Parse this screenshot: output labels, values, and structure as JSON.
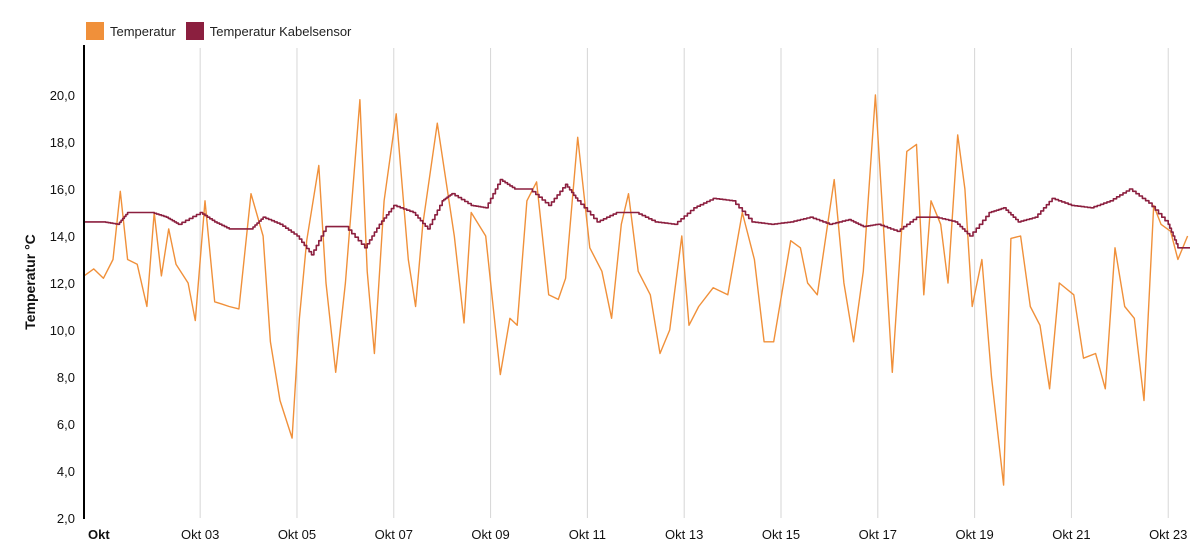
{
  "legend": [
    {
      "label": "Temperatur",
      "color": "#f0903a"
    },
    {
      "label": "Temperatur Kabelsensor",
      "color": "#8b1f3f"
    }
  ],
  "chart_data": {
    "type": "line",
    "ylabel": "Temperatur °C",
    "ylim": [
      2,
      22
    ],
    "yticks": [
      "2,0",
      "4,0",
      "6,0",
      "8,0",
      "10,0",
      "12,0",
      "14,0",
      "16,0",
      "18,0",
      "20,0"
    ],
    "xlim": [
      0.6,
      23.45
    ],
    "xticks": [
      {
        "day": 1,
        "label": "Okt"
      },
      {
        "day": 3,
        "label": "Okt 03"
      },
      {
        "day": 5,
        "label": "Okt 05"
      },
      {
        "day": 7,
        "label": "Okt 07"
      },
      {
        "day": 9,
        "label": "Okt 09"
      },
      {
        "day": 11,
        "label": "Okt 11"
      },
      {
        "day": 13,
        "label": "Okt 13"
      },
      {
        "day": 15,
        "label": "Okt 15"
      },
      {
        "day": 17,
        "label": "Okt 17"
      },
      {
        "day": 19,
        "label": "Okt 19"
      },
      {
        "day": 21,
        "label": "Okt 21"
      },
      {
        "day": 23,
        "label": "Okt 23"
      }
    ],
    "grid": "vertical",
    "legend_position": "top-left",
    "series": [
      {
        "name": "Temperatur",
        "color": "#f0903a",
        "x": [
          0.6,
          0.8,
          1.0,
          1.2,
          1.35,
          1.5,
          1.7,
          1.9,
          2.05,
          2.2,
          2.35,
          2.5,
          2.75,
          2.9,
          3.1,
          3.3,
          3.45,
          3.6,
          3.8,
          4.05,
          4.3,
          4.45,
          4.65,
          4.9,
          5.05,
          5.2,
          5.45,
          5.6,
          5.8,
          6.0,
          6.3,
          6.45,
          6.6,
          6.8,
          7.05,
          7.3,
          7.45,
          7.6,
          7.9,
          8.25,
          8.45,
          8.6,
          8.9,
          9.2,
          9.4,
          9.55,
          9.75,
          9.95,
          10.2,
          10.4,
          10.55,
          10.8,
          11.05,
          11.3,
          11.5,
          11.7,
          11.85,
          12.05,
          12.3,
          12.5,
          12.7,
          12.95,
          13.1,
          13.3,
          13.6,
          13.9,
          14.2,
          14.45,
          14.65,
          14.85,
          15.2,
          15.4,
          15.55,
          15.75,
          16.1,
          16.3,
          16.5,
          16.7,
          16.95,
          17.1,
          17.3,
          17.6,
          17.8,
          17.95,
          18.1,
          18.3,
          18.45,
          18.65,
          18.8,
          18.95,
          19.15,
          19.35,
          19.6,
          19.75,
          19.95,
          20.15,
          20.35,
          20.55,
          20.75,
          21.05,
          21.25,
          21.5,
          21.7,
          21.9,
          22.1,
          22.3,
          22.5,
          22.7,
          22.85,
          23.05,
          23.2,
          23.4
        ],
        "y": [
          12.3,
          12.6,
          12.2,
          13.0,
          15.9,
          13.0,
          12.8,
          11.0,
          15.0,
          12.3,
          14.3,
          12.8,
          12.0,
          10.4,
          15.5,
          11.2,
          11.1,
          11.0,
          10.9,
          15.8,
          14.0,
          9.5,
          7.0,
          5.4,
          10.5,
          13.8,
          17.0,
          12.0,
          8.2,
          12.0,
          19.8,
          12.5,
          9.0,
          15.5,
          19.2,
          13.0,
          11.0,
          14.5,
          18.8,
          14.0,
          10.3,
          15.0,
          14.0,
          8.1,
          10.5,
          10.2,
          15.5,
          16.3,
          11.5,
          11.3,
          12.2,
          18.2,
          13.5,
          12.5,
          10.5,
          14.5,
          15.8,
          12.5,
          11.5,
          9.0,
          10.0,
          14.0,
          10.2,
          11.0,
          11.8,
          11.5,
          15.0,
          13.0,
          9.5,
          9.5,
          13.8,
          13.5,
          12.0,
          11.5,
          16.4,
          12.0,
          9.5,
          12.5,
          20.0,
          15.0,
          8.2,
          17.6,
          17.9,
          11.5,
          15.5,
          14.5,
          12.0,
          18.3,
          16.0,
          11.0,
          13.0,
          8.0,
          3.4,
          13.9,
          14.0,
          11.0,
          10.2,
          7.5,
          12.0,
          11.5,
          8.8,
          9.0,
          7.5,
          13.5,
          11.0,
          10.5,
          7.0,
          15.3,
          14.5,
          14.2,
          13.0,
          14.0
        ],
        "note": ""
      },
      {
        "name": "Temperatur Kabelsensor",
        "color": "#8b1f3f",
        "x": [
          0.6,
          1.0,
          1.3,
          1.5,
          2.0,
          2.3,
          2.55,
          3.0,
          3.3,
          3.6,
          4.05,
          4.3,
          4.65,
          5.0,
          5.3,
          5.6,
          6.0,
          6.4,
          6.7,
          7.0,
          7.4,
          7.7,
          8.0,
          8.2,
          8.6,
          8.9,
          9.2,
          9.5,
          9.8,
          10.2,
          10.55,
          10.8,
          11.2,
          11.6,
          12.0,
          12.4,
          12.8,
          13.2,
          13.6,
          14.0,
          14.4,
          14.8,
          15.2,
          15.6,
          16.0,
          16.4,
          16.7,
          17.0,
          17.4,
          17.8,
          18.2,
          18.6,
          18.9,
          19.3,
          19.6,
          19.9,
          20.25,
          20.6,
          21.0,
          21.4,
          21.8,
          22.2,
          22.6,
          23.0,
          23.2,
          23.45
        ],
        "y": [
          14.6,
          14.6,
          14.5,
          15.0,
          15.0,
          14.8,
          14.5,
          15.0,
          14.6,
          14.3,
          14.3,
          14.8,
          14.5,
          14.0,
          13.2,
          14.4,
          14.4,
          13.5,
          14.5,
          15.3,
          15.0,
          14.3,
          15.5,
          15.8,
          15.3,
          15.2,
          16.4,
          16.0,
          16.0,
          15.3,
          16.2,
          15.5,
          14.6,
          15.0,
          15.0,
          14.6,
          14.5,
          15.2,
          15.6,
          15.5,
          14.6,
          14.5,
          14.6,
          14.8,
          14.5,
          14.7,
          14.4,
          14.5,
          14.2,
          14.8,
          14.8,
          14.6,
          14.0,
          15.0,
          15.2,
          14.6,
          14.8,
          15.6,
          15.3,
          15.2,
          15.5,
          16.0,
          15.4,
          14.5,
          13.5,
          13.5
        ],
        "note": ""
      }
    ]
  }
}
